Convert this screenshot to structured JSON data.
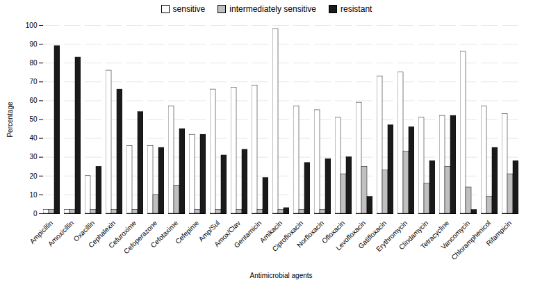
{
  "chart_data": {
    "type": "bar",
    "xlabel": "Antimicrobial agents",
    "ylabel": "Percentage",
    "categories": [
      "Ampicillin",
      "Amoxicillin",
      "Oxacillin",
      "Cephalexin",
      "Cefuroxime",
      "Cefoperazone",
      "Cefotaxime",
      "Cefepime",
      "Amp/Sul",
      "Amox/Clav",
      "Gentamicin",
      "Amikacin",
      "Ciprofloxacin",
      "Norfloxacin",
      "Ofloxacin",
      "Levofloxacin",
      "Gatifloxacin",
      "Erythromycin",
      "Clindamycin",
      "Tetracycline",
      "Vancomycin",
      "Chloramphenicol",
      "Rifampicin"
    ],
    "series": [
      {
        "name": "sensitive",
        "color": "#ffffff",
        "values": [
          2,
          2,
          20,
          76,
          36,
          36,
          57,
          42,
          66,
          67,
          68,
          98,
          57,
          55,
          51,
          59,
          73,
          75,
          51,
          52,
          86,
          57,
          53
        ]
      },
      {
        "name": "intermediately sensitive",
        "color": "#c0c0c0",
        "values": [
          2,
          2,
          2,
          2,
          2,
          10,
          15,
          2,
          2,
          2,
          2,
          2,
          2,
          2,
          21,
          25,
          23,
          33,
          16,
          25,
          14,
          9,
          21
        ]
      },
      {
        "name": "resistant",
        "color": "#1a1a1a",
        "values": [
          89,
          83,
          25,
          66,
          54,
          35,
          45,
          42,
          31,
          34,
          19,
          3,
          27,
          29,
          30,
          9,
          47,
          46,
          28,
          52,
          2,
          35,
          28
        ]
      }
    ],
    "ylim": [
      0,
      100
    ],
    "yticks": [
      0,
      10,
      20,
      30,
      40,
      50,
      60,
      70,
      80,
      90,
      100
    ],
    "grid": true,
    "legend": "top"
  }
}
